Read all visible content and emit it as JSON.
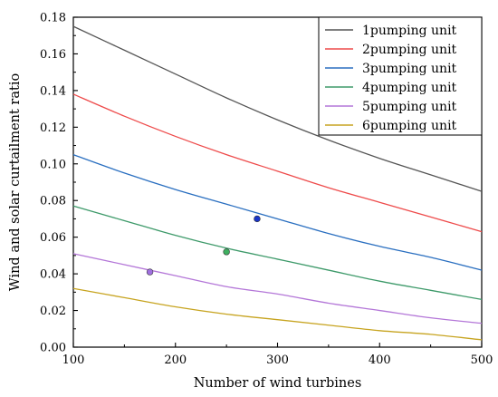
{
  "chart_data": {
    "type": "line",
    "xlabel": "Number of wind turbines",
    "ylabel": "Wind and solar curtailment ratio",
    "xlim": [
      100,
      500
    ],
    "ylim": [
      0,
      0.18
    ],
    "xticks": [
      100,
      200,
      300,
      400,
      500
    ],
    "xtick_labels": [
      "100",
      "200",
      "300",
      "400",
      "500"
    ],
    "yticks": [
      0,
      0.02,
      0.04,
      0.06,
      0.08,
      0.1,
      0.12,
      0.14,
      0.16,
      0.18
    ],
    "ytick_labels": [
      "0.00",
      "0.02",
      "0.04",
      "0.06",
      "0.08",
      "0.10",
      "0.12",
      "0.14",
      "0.16",
      "0.18"
    ],
    "grid": false,
    "legend_position": "top-right",
    "x": [
      100,
      150,
      200,
      250,
      300,
      350,
      400,
      450,
      500
    ],
    "series": [
      {
        "name": "1pumping unit",
        "color": "#555555",
        "values": [
          0.175,
          0.162,
          0.149,
          0.136,
          0.124,
          0.113,
          0.103,
          0.094,
          0.085
        ]
      },
      {
        "name": "2pumping unit",
        "color": "#ee4b4b",
        "values": [
          0.138,
          0.126,
          0.115,
          0.105,
          0.096,
          0.087,
          0.079,
          0.071,
          0.063
        ]
      },
      {
        "name": "3pumping unit",
        "color": "#2a6fc0",
        "values": [
          0.105,
          0.095,
          0.086,
          0.078,
          0.07,
          0.062,
          0.055,
          0.049,
          0.042
        ]
      },
      {
        "name": "4pumping unit",
        "color": "#3e9a6a",
        "values": [
          0.077,
          0.069,
          0.061,
          0.054,
          0.048,
          0.042,
          0.036,
          0.031,
          0.026
        ]
      },
      {
        "name": "5pumping unit",
        "color": "#b477d8",
        "values": [
          0.051,
          0.045,
          0.039,
          0.033,
          0.029,
          0.024,
          0.02,
          0.016,
          0.013
        ]
      },
      {
        "name": "6pumping unit",
        "color": "#c7a420",
        "values": [
          0.032,
          0.027,
          0.022,
          0.018,
          0.015,
          0.012,
          0.009,
          0.007,
          0.004
        ]
      }
    ],
    "markers": [
      {
        "series": "3pumping unit",
        "x": 280,
        "y": 0.07,
        "color": "#1a35c8"
      },
      {
        "series": "4pumping unit",
        "x": 250,
        "y": 0.052,
        "color": "#3fb060"
      },
      {
        "series": "5pumping unit",
        "x": 175,
        "y": 0.041,
        "color": "#a070e0"
      }
    ]
  }
}
